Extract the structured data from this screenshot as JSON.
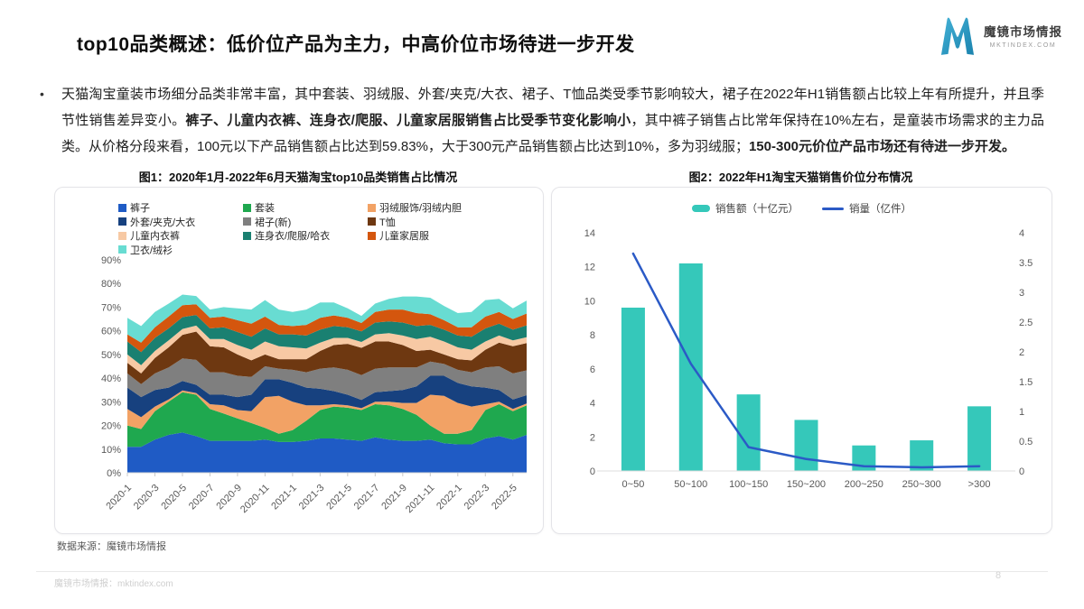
{
  "header": {
    "title": "top10品类概述：低价位产品为主力，中高价位市场待进一步开发",
    "logo": {
      "brand": "魔镜市场情报",
      "domain": "MKTINDEX.COM",
      "color": "#2596be"
    }
  },
  "paragraph": {
    "bullet": "•",
    "segments": [
      {
        "text": "天猫淘宝童装市场细分品类非常丰富，其中套装、羽绒服、外套/夹克/大衣、裙子、T恤品类受季节影响较大，裙子在2022年H1销售额占比较上年有所提升，并且季节性销售差异变小。",
        "bold": false
      },
      {
        "text": "裤子、儿童内衣裤、连身衣/爬服、儿童家居服销售占比受季节变化影响小",
        "bold": true
      },
      {
        "text": "，其中裤子销售占比常年保持在10%左右，是童装市场需求的主力品类。从价格分段来看，100元以下产品销售额占比达到59.83%，大于300元产品销售额占比达到10%，多为羽绒服；",
        "bold": false
      },
      {
        "text": "150-300元价位产品市场还有待进一步开发。",
        "bold": true
      }
    ]
  },
  "figure1": {
    "title": "图1：2020年1月-2022年6月天猫淘宝top10品类销售占比情况"
  },
  "figure2": {
    "title": "图2：2022年H1淘宝天猫销售价位分布情况"
  },
  "source_note": "数据来源：魔镜市场情报",
  "footer": {
    "left": "魔镜市场情报：mktindex.com",
    "page": "8"
  },
  "chart_data": [
    {
      "type": "area",
      "stacked": true,
      "title": "2020年1月-2022年6月天猫淘宝top10品类销售占比情况",
      "unit": "%",
      "ylim": [
        0,
        90
      ],
      "y_tick_step": 10,
      "grid": false,
      "legend_position": "top-left",
      "x": [
        "2020-1",
        "2020-2",
        "2020-3",
        "2020-4",
        "2020-5",
        "2020-6",
        "2020-7",
        "2020-8",
        "2020-9",
        "2020-10",
        "2020-11",
        "2020-12",
        "2021-1",
        "2021-2",
        "2021-3",
        "2021-4",
        "2021-5",
        "2021-6",
        "2021-7",
        "2021-8",
        "2021-9",
        "2021-10",
        "2021-11",
        "2021-12",
        "2022-1",
        "2022-2",
        "2022-3",
        "2022-4",
        "2022-5",
        "2022-6"
      ],
      "x_tick_every": 2,
      "series": [
        {
          "name": "裤子",
          "color": "#1F5BC5",
          "values": [
            11,
            11,
            14,
            16,
            17,
            15.5,
            13.5,
            13.5,
            13.5,
            13.5,
            14,
            13,
            13,
            13.5,
            14.5,
            14.5,
            14,
            13.5,
            15,
            14,
            13.5,
            13.5,
            14,
            12.5,
            12,
            12,
            14.5,
            15.5,
            14,
            16
          ]
        },
        {
          "name": "套装",
          "color": "#1FA84F",
          "values": [
            9,
            7.5,
            12,
            14,
            17,
            17.5,
            13.5,
            11.5,
            9.5,
            7.5,
            5,
            3.5,
            5,
            8.5,
            12,
            13.5,
            13.5,
            13,
            14,
            14.5,
            13.5,
            11,
            6,
            4,
            4.5,
            6,
            12,
            13.5,
            12,
            12.5
          ]
        },
        {
          "name": "羽绒服饰/羽绒内胆",
          "color": "#F2A265",
          "values": [
            7,
            5,
            2,
            1,
            0.8,
            0.7,
            2,
            3.5,
            3.5,
            5,
            13,
            16,
            12,
            6.5,
            2,
            1,
            1,
            0.8,
            1,
            1.5,
            2.5,
            5,
            13,
            16,
            13,
            10,
            2.5,
            1,
            1,
            0.8
          ]
        },
        {
          "name": "外套/夹克/大衣",
          "color": "#17417F",
          "values": [
            9,
            8.5,
            7,
            5,
            4,
            3.5,
            4,
            4.5,
            5.5,
            7,
            7.5,
            7,
            8,
            7.5,
            7,
            5.5,
            4.5,
            3.5,
            4,
            4.5,
            5.5,
            7,
            8,
            8.5,
            8.5,
            8.5,
            7,
            5,
            4,
            3.5
          ]
        },
        {
          "name": "裙子(新)",
          "color": "#7F7F7F",
          "values": [
            6,
            5.5,
            7,
            8.5,
            9.5,
            10.5,
            9.5,
            9.5,
            9,
            7.5,
            5.5,
            4.5,
            5.5,
            6.5,
            8.5,
            10,
            10.5,
            10.5,
            10,
            10,
            9.5,
            8,
            6,
            5,
            5.5,
            6,
            8.5,
            10,
            11,
            10.5
          ]
        },
        {
          "name": "T恤",
          "color": "#6E3811",
          "values": [
            4.5,
            4.5,
            6.5,
            8.5,
            10,
            12,
            11,
            10.5,
            9,
            7,
            5,
            4,
            4.5,
            5.5,
            7.5,
            9.5,
            11,
            11.5,
            11.5,
            11,
            9.5,
            7,
            5,
            4,
            4.5,
            5,
            7.5,
            10,
            11.5,
            11.5
          ]
        },
        {
          "name": "儿童内衣裤",
          "color": "#F7C9A4",
          "values": [
            3.5,
            3.5,
            3,
            3,
            2.5,
            2.5,
            3,
            3.5,
            4,
            4.5,
            5.5,
            5.5,
            5,
            4.5,
            3.5,
            3,
            2.5,
            2.5,
            3,
            3.5,
            4,
            5,
            5.5,
            5.5,
            5,
            4.5,
            3.5,
            3,
            2.5,
            2.5
          ]
        },
        {
          "name": "连身衣/爬服/哈衣",
          "color": "#1A8071",
          "values": [
            5.5,
            5.5,
            5.5,
            5,
            5,
            4.5,
            4.5,
            5,
            5.5,
            5.5,
            5.5,
            5,
            5.5,
            5.5,
            5.5,
            5,
            4.5,
            4.5,
            5,
            5,
            5.5,
            5.5,
            5,
            5,
            5,
            5.5,
            5.5,
            5,
            4.5,
            5
          ]
        },
        {
          "name": "儿童家居服",
          "color": "#D4560E",
          "values": [
            3,
            4,
            4.5,
            5,
            5,
            4.5,
            4.5,
            4.5,
            5,
            5.5,
            5,
            4,
            3.5,
            4.5,
            5,
            4.5,
            4,
            3.5,
            4.5,
            5,
            5.5,
            5.5,
            4.5,
            4,
            3.5,
            4,
            5,
            5,
            4.5,
            5
          ]
        },
        {
          "name": "卫衣/绒衫",
          "color": "#68DCD2",
          "values": [
            7,
            7,
            6.5,
            5.5,
            4.5,
            3.5,
            3.5,
            4,
            5,
            6,
            7,
            6.5,
            6,
            6.5,
            6.5,
            5.5,
            4,
            3,
            3.5,
            4.5,
            5.5,
            7,
            7,
            6,
            6,
            6.5,
            7,
            5.5,
            4.5,
            5.5
          ]
        }
      ]
    },
    {
      "type": "bar+line",
      "title": "2022年H1淘宝天猫销售价位分布情况",
      "categories": [
        "0~50",
        "50~100",
        "100~150",
        "150~200",
        "200~250",
        "250~300",
        ">300"
      ],
      "bar_series": {
        "name": "销售额（十亿元）",
        "color": "#35C8BA",
        "axis": "left",
        "values": [
          9.6,
          12.2,
          4.5,
          3.0,
          1.5,
          1.8,
          3.8
        ]
      },
      "line_series": {
        "name": "销量（亿件）",
        "color": "#2B5AC6",
        "axis": "right",
        "values": [
          3.65,
          1.8,
          0.4,
          0.2,
          0.08,
          0.06,
          0.08
        ]
      },
      "left_ylim": [
        0,
        14
      ],
      "left_tick_step": 2,
      "right_ylim": [
        0,
        4
      ],
      "right_tick_step": 0.5,
      "grid": false,
      "legend_position": "top-center"
    }
  ]
}
